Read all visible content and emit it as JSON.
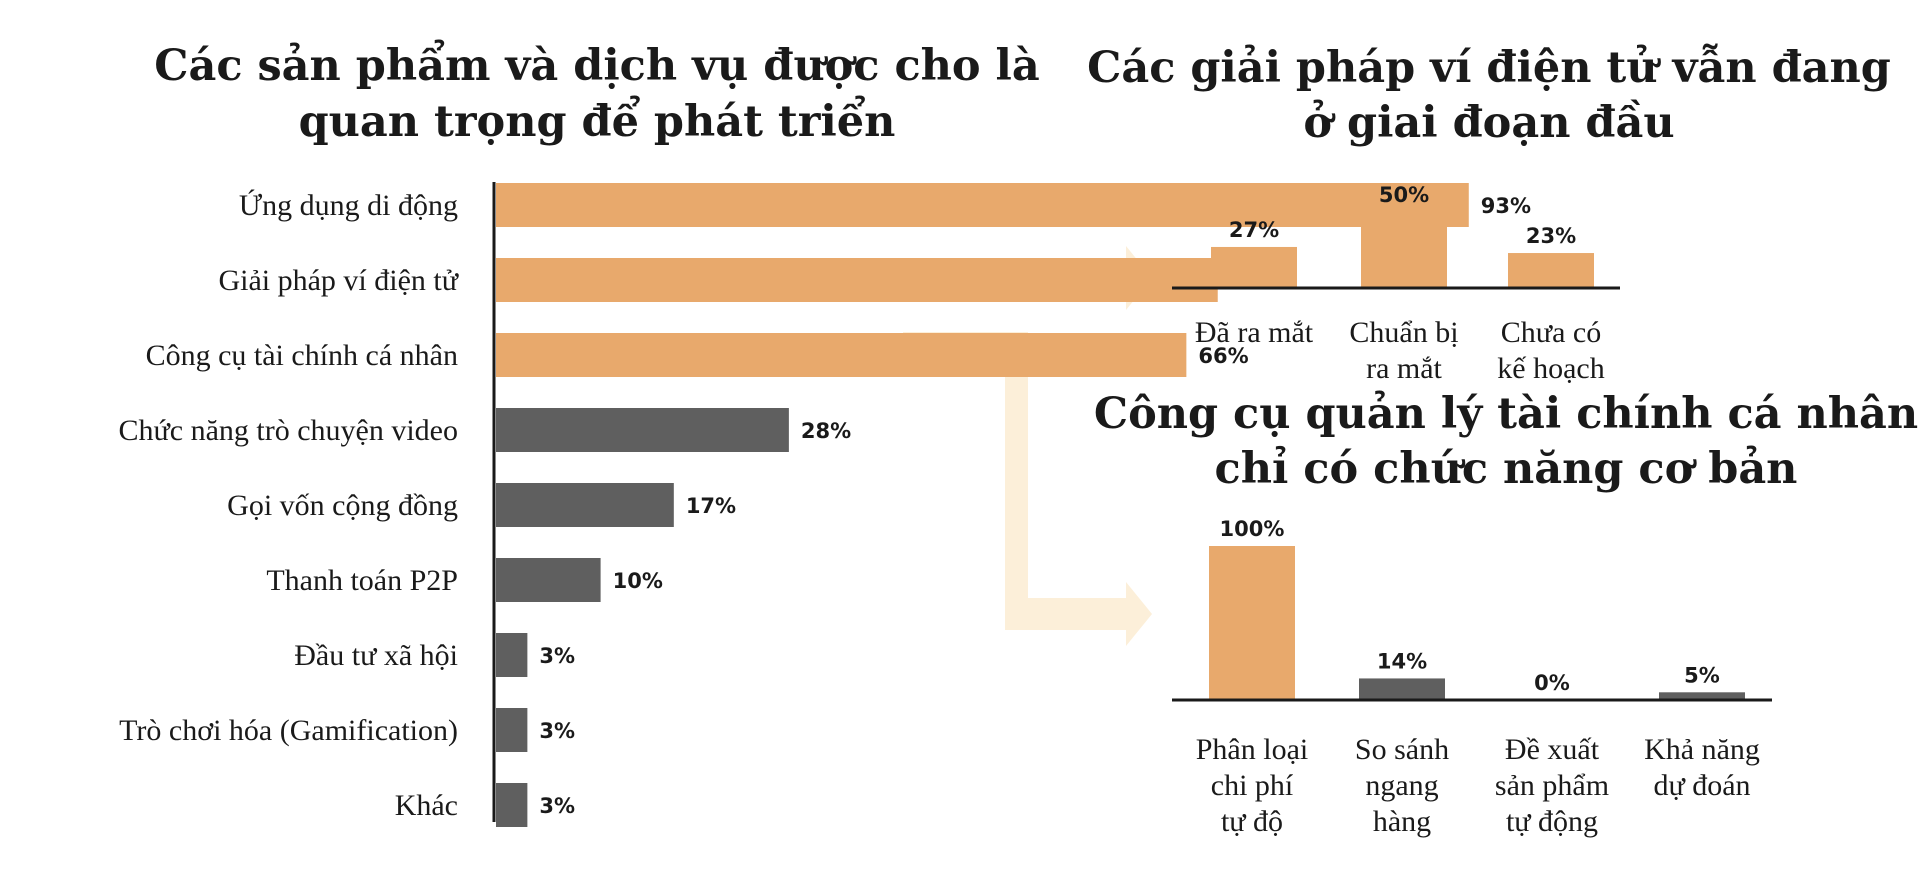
{
  "colors": {
    "highlight": "#e8a96c",
    "neutral": "#5f5f5f",
    "arrow": "#fcefd9",
    "axis": "#1a1a1a"
  },
  "chart_data": [
    {
      "type": "bar",
      "orientation": "horizontal",
      "title": "Các sản phẩm và dịch vụ được cho là quan trọng để phát triển",
      "title_lines": [
        "Các sản phẩm và dịch vụ được cho là",
        "quan trọng để phát triển"
      ],
      "categories": [
        "Ứng dụng di động",
        "Giải pháp ví điện tử",
        "Công cụ tài chính cá nhân",
        "Chức năng trò chuyện video",
        "Gọi vốn cộng đồng",
        "Thanh toán P2P",
        "Đầu tư xã hội",
        "Trò chơi hóa (Gamification)",
        "Khác"
      ],
      "values": [
        93,
        69,
        66,
        28,
        17,
        10,
        3,
        3,
        3
      ],
      "value_labels": [
        "93%",
        "69%",
        "66%",
        "28%",
        "17%",
        "10%",
        "3%",
        "3%",
        "3%"
      ],
      "highlighted": [
        true,
        true,
        true,
        false,
        false,
        false,
        false,
        false,
        false
      ],
      "unit": "%",
      "xlim": [
        0,
        100
      ]
    },
    {
      "type": "bar",
      "title": "Các giải pháp ví điện tử vẫn đang ở giai đoạn đầu",
      "title_lines": [
        "Các giải pháp ví điện tử vẫn đang",
        "ở giai đoạn đầu"
      ],
      "categories": [
        "Đã ra mắt",
        "Chuẩn bị ra mắt",
        "Chưa có kế hoạch"
      ],
      "category_lines": [
        [
          "Đã ra mắt"
        ],
        [
          "Chuẩn bị",
          "ra mắt"
        ],
        [
          "Chưa có",
          "kế hoạch"
        ]
      ],
      "values": [
        27,
        50,
        23
      ],
      "value_labels": [
        "27%",
        "50%",
        "23%"
      ],
      "highlighted": [
        true,
        true,
        true
      ],
      "unit": "%",
      "ylim": [
        0,
        100
      ]
    },
    {
      "type": "bar",
      "title": "Công cụ quản lý tài chính cá nhân chỉ có chức năng cơ bản",
      "title_lines": [
        "Công cụ quản lý tài chính cá nhân",
        "chỉ có chức năng cơ bản"
      ],
      "categories": [
        "Phân loại chi phí tự độ",
        "So sánh ngang hàng",
        "Đề xuất sản phẩm tự động",
        "Khả năng dự đoán"
      ],
      "category_lines": [
        [
          "Phân loại",
          "chi phí",
          "tự độ"
        ],
        [
          "So sánh",
          "ngang",
          "hàng"
        ],
        [
          "Đề xuất",
          "sản phẩm",
          "tự động"
        ],
        [
          "Khả năng",
          "dự đoán"
        ]
      ],
      "values": [
        100,
        14,
        0,
        5
      ],
      "value_labels": [
        "100%",
        "14%",
        "0%",
        "5%"
      ],
      "highlighted": [
        true,
        false,
        false,
        false
      ],
      "unit": "%",
      "ylim": [
        0,
        100
      ]
    }
  ]
}
